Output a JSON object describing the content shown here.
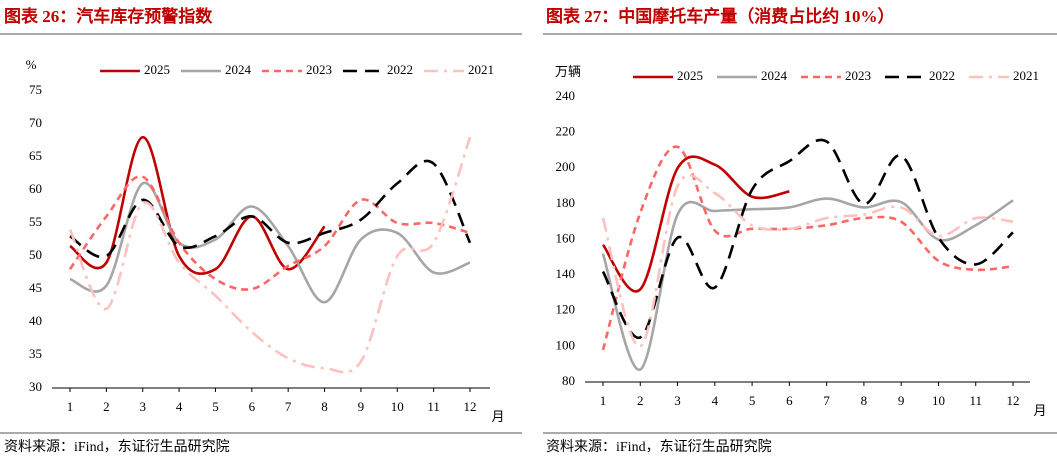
{
  "chart_data": [
    {
      "type": "line",
      "title": "图表 26：汽车库存预警指数",
      "y_unit": "%",
      "x_label": "月",
      "source": "资料来源：iFind，东证衍生品研究院",
      "categories": [
        "1",
        "2",
        "3",
        "4",
        "5",
        "6",
        "7",
        "8",
        "9",
        "10",
        "11",
        "12"
      ],
      "ylim": [
        30,
        75
      ],
      "yticks": [
        30,
        35,
        40,
        45,
        50,
        55,
        60,
        65,
        70,
        75
      ],
      "grid": false,
      "series": [
        {
          "name": "2025",
          "color": "#c00000",
          "line_style": "solid",
          "values": [
            51.5,
            49,
            68,
            50,
            48,
            56,
            48,
            54.5,
            null,
            null,
            null,
            null
          ]
        },
        {
          "name": "2024",
          "color": "#a6a6a6",
          "line_style": "solid",
          "values": [
            46.5,
            45.5,
            61,
            52,
            52.5,
            57.5,
            51.5,
            43,
            52.5,
            53.5,
            47.5,
            49
          ]
        },
        {
          "name": "2023",
          "color": "#ff6666",
          "line_style": "dashed",
          "values": [
            48,
            56,
            62,
            52,
            46.5,
            45,
            48.5,
            51.5,
            58.5,
            55,
            55,
            53.5
          ]
        },
        {
          "name": "2022",
          "color": "#000000",
          "line_style": "longdash",
          "values": [
            53,
            50,
            58.5,
            51.5,
            53,
            56,
            52,
            53.5,
            55.5,
            61,
            64,
            52
          ]
        },
        {
          "name": "2021",
          "color": "#ffc0c0",
          "line_style": "dashdot",
          "values": [
            54,
            42,
            58,
            49,
            44,
            38.5,
            34.5,
            33,
            34,
            50,
            52,
            68
          ]
        }
      ]
    },
    {
      "type": "line",
      "title": "图表 27：中国摩托车产量（消费占比约 10%）",
      "y_unit": "万辆",
      "x_label": "月",
      "source": "资料来源：iFind，东证衍生品研究院",
      "categories": [
        "1",
        "2",
        "3",
        "4",
        "5",
        "6",
        "7",
        "8",
        "9",
        "10",
        "11",
        "12"
      ],
      "ylim": [
        80,
        240
      ],
      "yticks": [
        80,
        100,
        120,
        140,
        160,
        180,
        200,
        220,
        240
      ],
      "grid": false,
      "series": [
        {
          "name": "2025",
          "color": "#c00000",
          "line_style": "solid",
          "values": [
            157,
            132,
            200,
            202,
            184,
            187,
            null,
            null,
            null,
            null,
            null,
            null
          ]
        },
        {
          "name": "2024",
          "color": "#a6a6a6",
          "line_style": "solid",
          "values": [
            152,
            87,
            174,
            176,
            177,
            178,
            183,
            178,
            181,
            160,
            168,
            182
          ]
        },
        {
          "name": "2023",
          "color": "#ff6666",
          "line_style": "dashed",
          "values": [
            98,
            175,
            212,
            165,
            166,
            166,
            168,
            172,
            170,
            148,
            143,
            145
          ]
        },
        {
          "name": "2022",
          "color": "#000000",
          "line_style": "longdash",
          "values": [
            142,
            105,
            161,
            133,
            188,
            204,
            215,
            180,
            207,
            161,
            146,
            164
          ]
        },
        {
          "name": "2021",
          "color": "#ffc0c0",
          "line_style": "dashdot",
          "values": [
            172,
            100,
            190,
            186,
            168,
            166,
            172,
            174,
            178,
            162,
            172,
            170
          ]
        }
      ]
    }
  ]
}
